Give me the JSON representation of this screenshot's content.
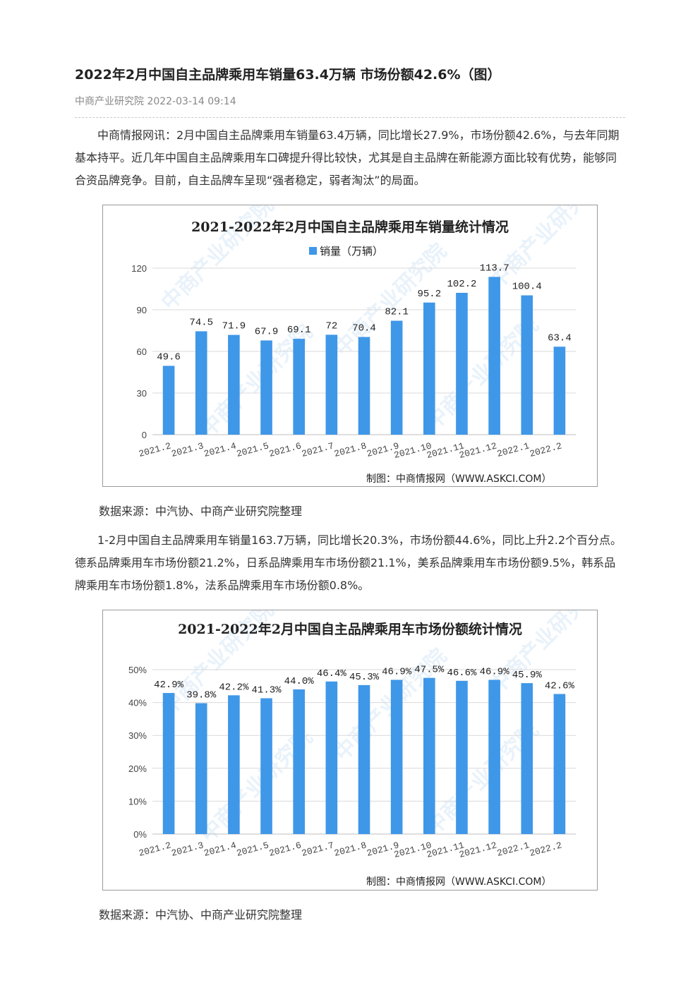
{
  "article": {
    "title": "2022年2月中国自主品牌乘用车销量63.4万辆 市场份额42.6%（图）",
    "meta": "中商产业研究院 2022-03-14 09:14",
    "para1": "中商情报网讯：2月中国自主品牌乘用车销量63.4万辆，同比增长27.9%，市场份额42.6%，与去年同期基本持平。近几年中国自主品牌乘用车口碑提升得比较快，尤其是自主品牌在新能源方面比较有优势，能够同合资品牌竞争。目前，自主品牌车呈现“强者稳定，弱者淘汰”的局面。",
    "source1": "数据来源：中汽协、中商产业研究院整理",
    "para2": "1-2月中国自主品牌乘用车销量163.7万辆，同比增长20.3%，市场份额44.6%，同比上升2.2个百分点。德系品牌乘用车市场份额21.2%，日系品牌乘用车市场份额21.1%，美系品牌乘用车市场份额9.5%，韩系品牌乘用车市场份额1.8%，法系品牌乘用车市场份额0.8%。",
    "source2": "数据来源：中汽协、中商产业研究院整理"
  },
  "colors": {
    "bar": "#3f97e8",
    "grid": "#d9d9d9",
    "axis": "#bfbfbf",
    "watermark": "#5aa0e0"
  },
  "watermark_text": "中商产业研究院",
  "chart_data": [
    {
      "type": "bar",
      "title": "2021-2022年2月中国自主品牌乘用车销量统计情况",
      "legend": "销量（万辆）",
      "legend_position": "top-center",
      "credit": "制图：中商情报网（WWW.ASKCI.COM）",
      "categories": [
        "2021.2",
        "2021.3",
        "2021.4",
        "2021.5",
        "2021.6",
        "2021.7",
        "2021.8",
        "2021.9",
        "2021.10",
        "2021.11",
        "2021.12",
        "2022.1",
        "2022.2"
      ],
      "series": [
        {
          "name": "销量（万辆）",
          "values": [
            49.6,
            74.5,
            71.9,
            67.9,
            69.1,
            72,
            70.4,
            82.1,
            95.2,
            102.2,
            113.7,
            100.4,
            63.4
          ]
        }
      ],
      "data_labels": [
        "49.6",
        "74.5",
        "71.9",
        "67.9",
        "69.1",
        "72",
        "70.4",
        "82.1",
        "95.2",
        "102.2",
        "113.7",
        "100.4",
        "63.4"
      ],
      "ylim": [
        0,
        120
      ],
      "yticks": [
        0,
        30,
        60,
        90,
        120
      ],
      "ytick_labels": [
        "0",
        "30",
        "60",
        "90",
        "120"
      ],
      "grid": true
    },
    {
      "type": "bar",
      "title": "2021-2022年2月中国自主品牌乘用车市场份额统计情况",
      "credit": "制图：中商情报网（WWW.ASKCI.COM）",
      "categories": [
        "2021.2",
        "2021.3",
        "2021.4",
        "2021.5",
        "2021.6",
        "2021.7",
        "2021.8",
        "2021.9",
        "2021.10",
        "2021.11",
        "2021.12",
        "2022.1",
        "2022.2"
      ],
      "series": [
        {
          "values": [
            42.9,
            39.8,
            42.2,
            41.3,
            44.0,
            46.4,
            45.3,
            46.9,
            47.5,
            46.6,
            46.9,
            45.9,
            42.6
          ]
        }
      ],
      "data_labels": [
        "42.9%",
        "39.8%",
        "42.2%",
        "41.3%",
        "44.0%",
        "46.4%",
        "45.3%",
        "46.9%",
        "47.5%",
        "46.6%",
        "46.9%",
        "45.9%",
        "42.6%"
      ],
      "ylim": [
        0,
        50
      ],
      "yticks": [
        0,
        10,
        20,
        30,
        40,
        50
      ],
      "ytick_labels": [
        "0%",
        "10%",
        "20%",
        "30%",
        "40%",
        "50%"
      ],
      "grid": true
    }
  ]
}
